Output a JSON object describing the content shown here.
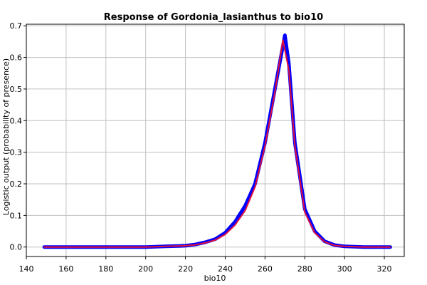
{
  "chart_data": {
    "type": "line",
    "title": "Response of Gordonia_lasianthus to bio10",
    "xlabel": "bio10",
    "ylabel": "Logistic output (probability of presence)",
    "xlim": [
      140,
      330
    ],
    "ylim": [
      -0.03,
      0.705
    ],
    "xticks": [
      140,
      160,
      180,
      200,
      220,
      240,
      260,
      280,
      300,
      320
    ],
    "yticks": [
      0.0,
      0.1,
      0.2,
      0.3,
      0.4,
      0.5,
      0.6,
      0.7
    ],
    "xtick_labels": [
      "140",
      "160",
      "180",
      "200",
      "220",
      "240",
      "260",
      "280",
      "300",
      "320"
    ],
    "ytick_labels": [
      "0.0",
      "0.1",
      "0.2",
      "0.3",
      "0.4",
      "0.5",
      "0.6",
      "0.7"
    ],
    "grid": true,
    "series": [
      {
        "color": "#0000ff",
        "x": [
          149,
          200,
          210,
          220,
          225,
          230,
          235,
          240,
          245,
          250,
          255,
          260,
          265,
          270,
          272,
          275,
          280,
          285,
          290,
          295,
          300,
          310,
          323
        ],
        "y": [
          0.0,
          0.0,
          0.002,
          0.004,
          0.008,
          0.015,
          0.025,
          0.045,
          0.08,
          0.13,
          0.2,
          0.33,
          0.5,
          0.67,
          0.58,
          0.33,
          0.12,
          0.05,
          0.018,
          0.006,
          0.002,
          0.0,
          0.0
        ]
      },
      {
        "color": "#e0103c",
        "x": [
          149,
          200,
          210,
          220,
          225,
          230,
          235,
          240,
          245,
          250,
          255,
          260,
          265,
          269,
          272,
          275,
          280,
          285,
          290,
          295,
          300,
          310,
          323
        ],
        "y": [
          0.0,
          0.0,
          0.002,
          0.004,
          0.007,
          0.013,
          0.022,
          0.04,
          0.07,
          0.115,
          0.19,
          0.32,
          0.49,
          0.655,
          0.56,
          0.32,
          0.11,
          0.045,
          0.016,
          0.005,
          0.002,
          0.0,
          0.0
        ]
      }
    ]
  }
}
